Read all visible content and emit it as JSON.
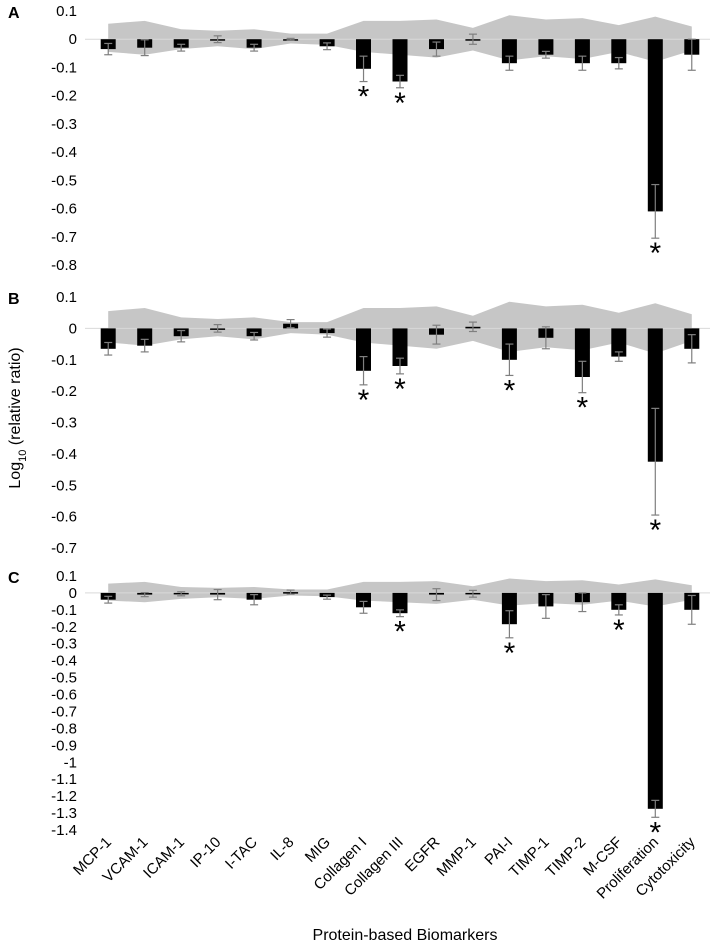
{
  "figure": {
    "xlabel": "Protein-based Biomarkers",
    "ylabel_prefix": "Log",
    "ylabel_sub": "10",
    "ylabel_suffix": " (relative ratio)",
    "bar_color": "#000000",
    "band_color": "#c6c6c6",
    "significance_marker": "*"
  },
  "chart_data": [
    {
      "panel": "A",
      "type": "bar",
      "categories": [
        "MCP-1",
        "VCAM-1",
        "ICAM-1",
        "IP-10",
        "I-TAC",
        "IL-8",
        "MIG",
        "Collagen I",
        "Collagen III",
        "EGFR",
        "MMP-1",
        "PAI-I",
        "TIMP-1",
        "TIMP-2",
        "M-CSF",
        "Proliferation",
        "Cytotoxicity"
      ],
      "values": [
        -0.035,
        -0.03,
        -0.03,
        0.0,
        -0.03,
        0.0,
        -0.025,
        -0.105,
        -0.15,
        -0.035,
        0.0,
        -0.085,
        -0.055,
        -0.085,
        -0.085,
        -0.61,
        -0.055
      ],
      "errors": [
        0.02,
        0.028,
        0.012,
        0.012,
        0.012,
        0.003,
        0.012,
        0.045,
        0.022,
        0.025,
        0.018,
        0.025,
        0.012,
        0.025,
        0.02,
        0.095,
        0.055
      ],
      "significant": [
        false,
        false,
        false,
        false,
        false,
        false,
        false,
        true,
        true,
        false,
        false,
        false,
        false,
        false,
        false,
        true,
        false
      ],
      "band_upper": [
        0.055,
        0.065,
        0.035,
        0.03,
        0.035,
        0.02,
        0.02,
        0.065,
        0.065,
        0.07,
        0.04,
        0.085,
        0.07,
        0.075,
        0.05,
        0.08,
        0.045
      ],
      "band_lower": [
        -0.045,
        -0.055,
        -0.035,
        -0.025,
        -0.035,
        -0.015,
        -0.02,
        -0.045,
        -0.055,
        -0.065,
        -0.04,
        -0.075,
        -0.06,
        -0.07,
        -0.045,
        -0.08,
        -0.04
      ],
      "ylim": [
        -0.8,
        0.1
      ],
      "yticks": [
        "0.1",
        "0",
        "-0.1",
        "-0.2",
        "-0.3",
        "-0.4",
        "-0.5",
        "-0.6",
        "-0.7",
        "-0.8"
      ],
      "grid": false
    },
    {
      "panel": "B",
      "type": "bar",
      "categories": [
        "MCP-1",
        "VCAM-1",
        "ICAM-1",
        "IP-10",
        "I-TAC",
        "IL-8",
        "MIG",
        "Collagen I",
        "Collagen III",
        "EGFR",
        "MMP-1",
        "PAI-I",
        "TIMP-1",
        "TIMP-2",
        "M-CSF",
        "Proliferation",
        "Cytotoxicity"
      ],
      "values": [
        -0.065,
        -0.055,
        -0.025,
        0.0,
        -0.025,
        0.015,
        -0.015,
        -0.135,
        -0.12,
        -0.02,
        0.005,
        -0.1,
        -0.03,
        -0.155,
        -0.09,
        -0.425,
        -0.065
      ],
      "errors": [
        0.02,
        0.02,
        0.018,
        0.012,
        0.012,
        0.013,
        0.013,
        0.045,
        0.025,
        0.03,
        0.015,
        0.05,
        0.035,
        0.05,
        0.015,
        0.17,
        0.045
      ],
      "significant": [
        false,
        false,
        false,
        false,
        false,
        false,
        false,
        true,
        true,
        false,
        false,
        true,
        false,
        true,
        false,
        true,
        false
      ],
      "band_upper": [
        0.055,
        0.065,
        0.035,
        0.03,
        0.035,
        0.02,
        0.02,
        0.065,
        0.065,
        0.07,
        0.04,
        0.085,
        0.07,
        0.075,
        0.05,
        0.08,
        0.045
      ],
      "band_lower": [
        -0.045,
        -0.055,
        -0.035,
        -0.025,
        -0.035,
        -0.015,
        -0.02,
        -0.045,
        -0.055,
        -0.065,
        -0.04,
        -0.075,
        -0.06,
        -0.07,
        -0.045,
        -0.08,
        -0.04
      ],
      "ylim": [
        -0.7,
        0.1
      ],
      "yticks": [
        "0.1",
        "0",
        "-0.1",
        "-0.2",
        "-0.3",
        "-0.4",
        "-0.5",
        "-0.6",
        "-0.7"
      ],
      "grid": false
    },
    {
      "panel": "C",
      "type": "bar",
      "categories": [
        "MCP-1",
        "VCAM-1",
        "ICAM-1",
        "IP-10",
        "I-TAC",
        "IL-8",
        "MIG",
        "Collagen I",
        "Collagen III",
        "EGFR",
        "MMP-1",
        "PAI-I",
        "TIMP-1",
        "TIMP-2",
        "M-CSF",
        "Proliferation",
        "Cytotoxicity"
      ],
      "values": [
        -0.04,
        -0.01,
        -0.005,
        -0.01,
        -0.04,
        0.005,
        -0.025,
        -0.085,
        -0.12,
        -0.01,
        -0.005,
        -0.185,
        -0.08,
        -0.055,
        -0.1,
        -1.275,
        -0.1
      ],
      "errors": [
        0.02,
        0.012,
        0.012,
        0.03,
        0.03,
        0.012,
        0.012,
        0.035,
        0.02,
        0.035,
        0.02,
        0.08,
        0.07,
        0.055,
        0.03,
        0.05,
        0.085
      ],
      "significant": [
        false,
        false,
        false,
        false,
        false,
        false,
        false,
        false,
        true,
        false,
        false,
        true,
        false,
        false,
        true,
        true,
        false
      ],
      "band_upper": [
        0.055,
        0.065,
        0.035,
        0.03,
        0.035,
        0.02,
        0.02,
        0.065,
        0.065,
        0.07,
        0.04,
        0.085,
        0.07,
        0.075,
        0.05,
        0.08,
        0.045
      ],
      "band_lower": [
        -0.045,
        -0.055,
        -0.035,
        -0.025,
        -0.035,
        -0.015,
        -0.02,
        -0.045,
        -0.055,
        -0.065,
        -0.04,
        -0.075,
        -0.06,
        -0.07,
        -0.045,
        -0.08,
        -0.04
      ],
      "ylim": [
        -1.4,
        0.1
      ],
      "yticks": [
        "0.1",
        "0",
        "-0.1",
        "-0.2",
        "-0.3",
        "-0.4",
        "-0.5",
        "-0.6",
        "-0.7",
        "-0.8",
        "-0.9",
        "-1",
        "-1.1",
        "-1.2",
        "-1.3",
        "-1.4"
      ],
      "grid": false
    }
  ]
}
